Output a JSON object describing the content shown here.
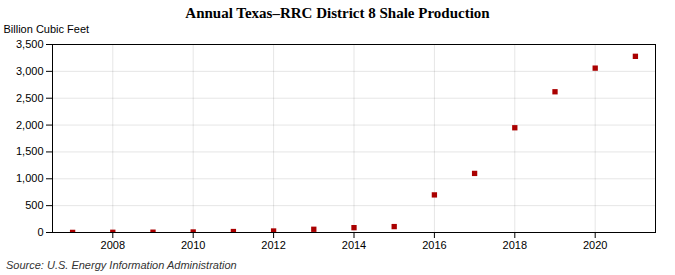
{
  "chart_data": {
    "type": "scatter",
    "title": "Annual Texas–RRC District 8 Shale Production",
    "ylabel": "Billion Cubic Feet",
    "annotation": "Source: U.S. Energy Information Administration",
    "x": [
      2007,
      2008,
      2009,
      2010,
      2011,
      2012,
      2013,
      2014,
      2015,
      2016,
      2017,
      2018,
      2019,
      2020,
      2021
    ],
    "values": [
      2,
      4,
      6,
      10,
      18,
      28,
      60,
      90,
      110,
      700,
      1100,
      1950,
      2620,
      3060,
      3280
    ],
    "color": "#aa0000",
    "marker": "square",
    "xlim": [
      2006.5,
      2021.5
    ],
    "xticks": [
      2008,
      2010,
      2012,
      2014,
      2016,
      2018,
      2020
    ],
    "ylim": [
      0,
      3500
    ],
    "yticks": [
      0,
      500,
      {
        "value": 1000,
        "label": "1,000"
      },
      {
        "value": 1500,
        "label": "1,500"
      },
      {
        "value": 2000,
        "label": "2,000"
      },
      {
        "value": 2500,
        "label": "2,500"
      },
      {
        "value": 3000,
        "label": "3,000"
      },
      {
        "value": 3500,
        "label": "3,500"
      }
    ],
    "grid": true
  }
}
